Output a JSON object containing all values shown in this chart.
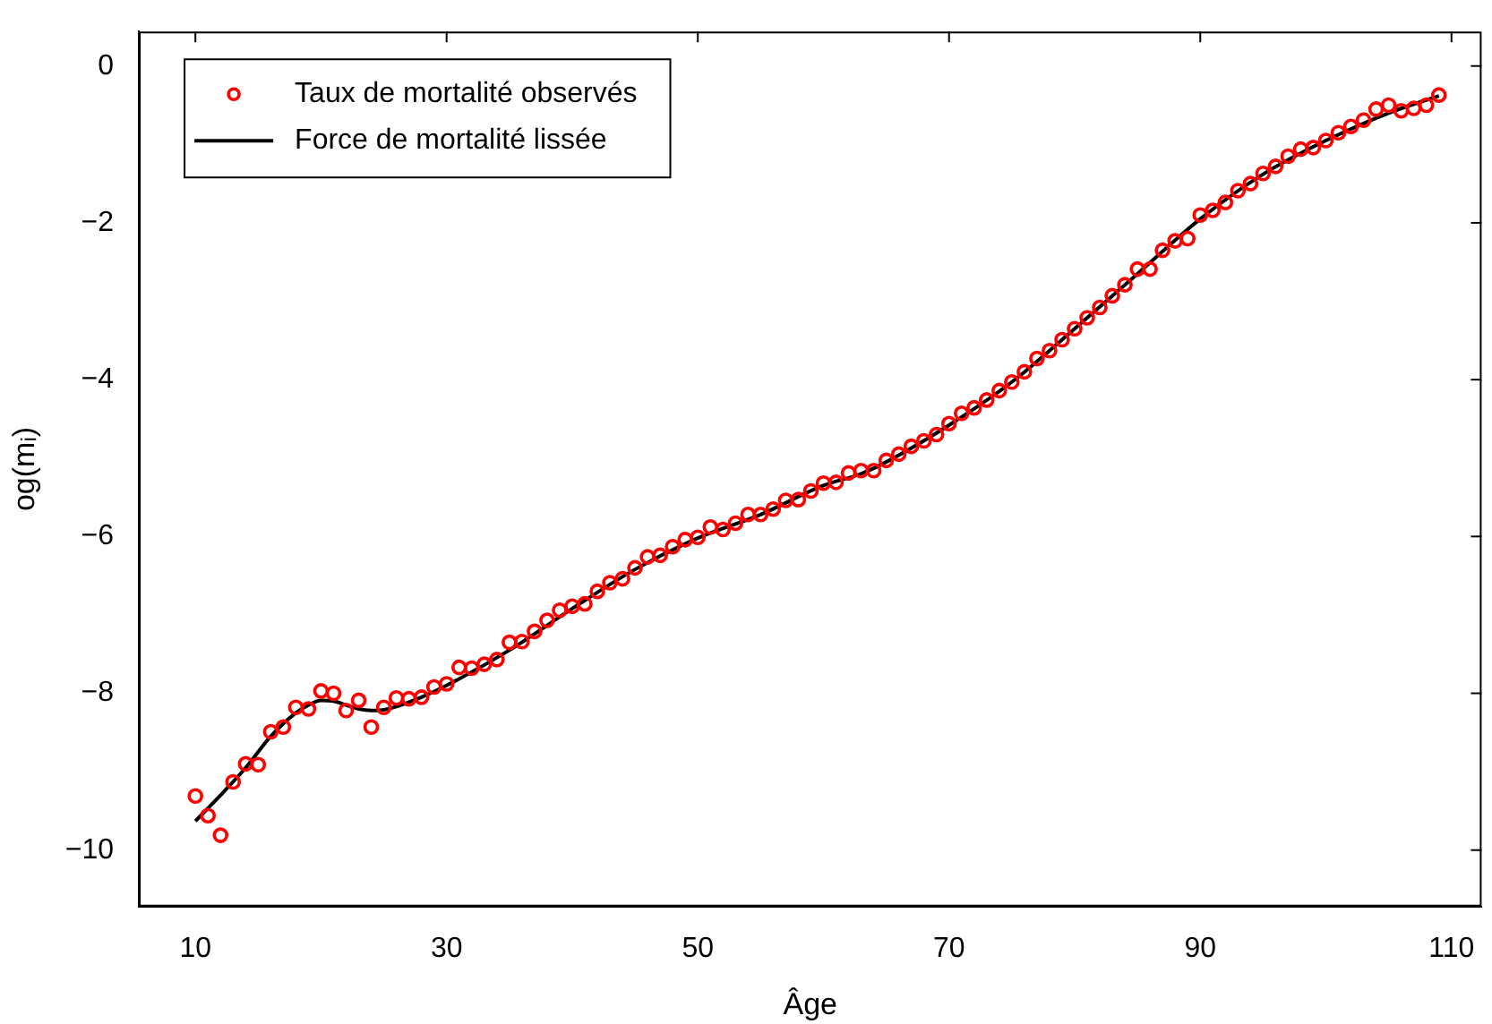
{
  "chart_data": {
    "type": "scatter",
    "xlabel": "Âge",
    "ylabel": "og(mᵢ)",
    "xlim": [
      5.5,
      112.4
    ],
    "ylim": [
      -10.72,
      0.44
    ],
    "xticks": [
      10,
      30,
      50,
      70,
      90,
      110
    ],
    "yticks": [
      -10,
      -8,
      -6,
      -4,
      -2,
      0
    ],
    "grid": false,
    "legend": "top left",
    "x": [
      10,
      11,
      12,
      13,
      14,
      15,
      16,
      17,
      18,
      19,
      20,
      21,
      22,
      23,
      24,
      25,
      26,
      27,
      28,
      29,
      30,
      31,
      32,
      33,
      34,
      35,
      36,
      37,
      38,
      39,
      40,
      41,
      42,
      43,
      44,
      45,
      46,
      47,
      48,
      49,
      50,
      51,
      52,
      53,
      54,
      55,
      56,
      57,
      58,
      59,
      60,
      61,
      62,
      63,
      64,
      65,
      66,
      67,
      68,
      69,
      70,
      71,
      72,
      73,
      74,
      75,
      76,
      77,
      78,
      79,
      80,
      81,
      82,
      83,
      84,
      85,
      86,
      87,
      88,
      89,
      90,
      91,
      92,
      93,
      94,
      95,
      96,
      97,
      98,
      99,
      100,
      101,
      102,
      103,
      104,
      105,
      106,
      107,
      108,
      109
    ],
    "series": [
      {
        "name": "Taux de mortalité observés",
        "color": "#ff0000",
        "marker": "circle",
        "values": [
          -9.31,
          -9.56,
          -9.81,
          -9.13,
          -8.9,
          -8.91,
          -8.49,
          -8.43,
          -8.18,
          -8.2,
          -7.97,
          -8.0,
          -8.22,
          -8.09,
          -8.43,
          -8.18,
          -8.06,
          -8.07,
          -8.05,
          -7.92,
          -7.88,
          -7.67,
          -7.68,
          -7.63,
          -7.57,
          -7.35,
          -7.34,
          -7.21,
          -7.07,
          -6.94,
          -6.89,
          -6.86,
          -6.7,
          -6.59,
          -6.54,
          -6.4,
          -6.26,
          -6.24,
          -6.13,
          -6.04,
          -6.01,
          -5.88,
          -5.91,
          -5.83,
          -5.72,
          -5.72,
          -5.65,
          -5.54,
          -5.53,
          -5.42,
          -5.32,
          -5.31,
          -5.19,
          -5.16,
          -5.16,
          -5.03,
          -4.95,
          -4.85,
          -4.78,
          -4.7,
          -4.56,
          -4.43,
          -4.36,
          -4.26,
          -4.14,
          -4.03,
          -3.9,
          -3.73,
          -3.63,
          -3.49,
          -3.35,
          -3.21,
          -3.08,
          -2.93,
          -2.79,
          -2.59,
          -2.59,
          -2.35,
          -2.23,
          -2.2,
          -1.9,
          -1.84,
          -1.74,
          -1.59,
          -1.5,
          -1.37,
          -1.28,
          -1.15,
          -1.06,
          -1.04,
          -0.95,
          -0.85,
          -0.77,
          -0.69,
          -0.55,
          -0.5,
          -0.57,
          -0.54,
          -0.5,
          -0.37
        ]
      },
      {
        "name": "Force de mortalité lissée",
        "type": "line",
        "color": "#000000",
        "marker": "none",
        "line_style": "solid",
        "x": [
          10,
          12,
          14,
          16,
          18,
          19,
          20,
          21,
          22,
          23,
          24,
          25,
          26,
          28,
          30,
          35,
          40,
          45,
          50,
          55,
          60,
          63,
          65,
          70,
          75,
          80,
          85,
          90,
          95,
          100,
          105,
          109
        ],
        "values": [
          -9.63,
          -9.3,
          -8.95,
          -8.55,
          -8.25,
          -8.15,
          -8.09,
          -8.1,
          -8.15,
          -8.2,
          -8.22,
          -8.21,
          -8.17,
          -8.05,
          -7.9,
          -7.45,
          -6.92,
          -6.42,
          -6.02,
          -5.72,
          -5.35,
          -5.2,
          -5.05,
          -4.58,
          -4.03,
          -3.35,
          -2.65,
          -1.95,
          -1.38,
          -0.95,
          -0.6,
          -0.38
        ]
      }
    ]
  }
}
